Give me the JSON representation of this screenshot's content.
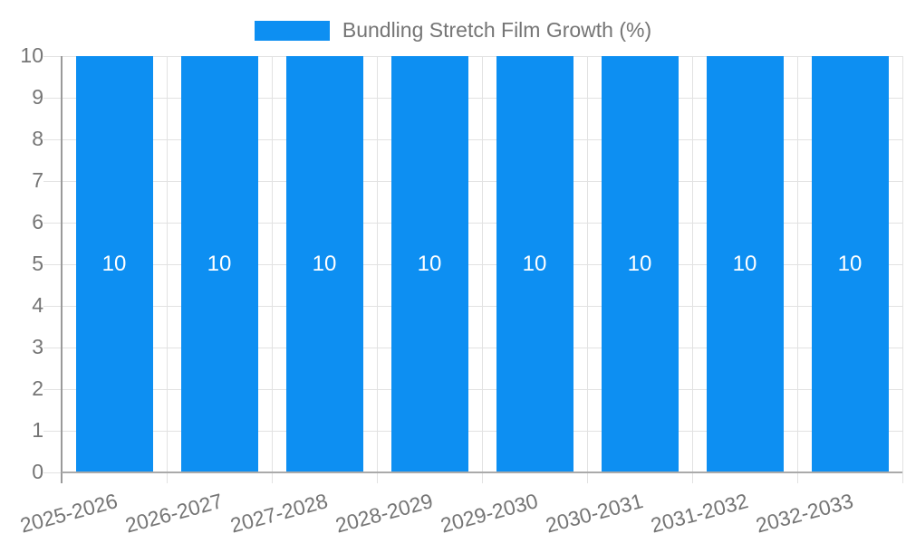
{
  "chart_data": {
    "type": "bar",
    "title": "Bundling Stretch Film Growth (%)",
    "legend_label": "Bundling Stretch Film Growth (%)",
    "legend_position": "top-center",
    "categories": [
      "2025-2026",
      "2026-2027",
      "2027-2028",
      "2028-2029",
      "2029-2030",
      "2030-2031",
      "2031-2032",
      "2032-2033"
    ],
    "values": [
      10,
      10,
      10,
      10,
      10,
      10,
      10,
      10
    ],
    "bar_labels": [
      "10",
      "10",
      "10",
      "10",
      "10",
      "10",
      "10",
      "10"
    ],
    "xlabel": "",
    "ylabel": "",
    "ylim": [
      0,
      10
    ],
    "yticks": [
      0,
      1,
      2,
      3,
      4,
      5,
      6,
      7,
      8,
      9,
      10
    ],
    "grid": true,
    "x_tick_rotation_deg": -15,
    "colors": {
      "bar": "#0d8ff2",
      "axis_text": "#757575",
      "gridline": "#e2e2e2",
      "axis_line": "#9a9a9a",
      "bar_label": "#ffffff"
    }
  }
}
